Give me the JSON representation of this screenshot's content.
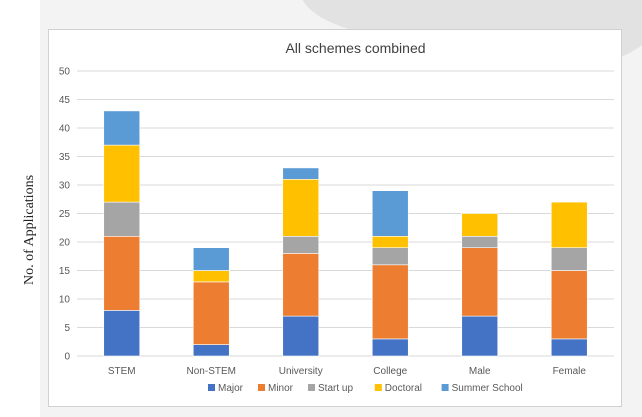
{
  "y_axis_label": "No. of Applications",
  "chart_data": {
    "type": "bar",
    "stacked": true,
    "title": "All schemes combined",
    "xlabel": "",
    "ylabel": "No. of Applications",
    "ylim": [
      0,
      50
    ],
    "yticks": [
      0,
      5,
      10,
      15,
      20,
      25,
      30,
      35,
      40,
      45,
      50
    ],
    "grid": true,
    "legend_position": "bottom",
    "categories": [
      "STEM",
      "Non-STEM",
      "University",
      "College",
      "Male",
      "Female"
    ],
    "series": [
      {
        "name": "Major",
        "color": "#4472c4",
        "values": [
          8,
          2,
          7,
          3,
          7,
          3
        ]
      },
      {
        "name": "Minor",
        "color": "#ed7d31",
        "values": [
          13,
          11,
          11,
          13,
          12,
          12
        ]
      },
      {
        "name": "Start up",
        "color": "#a5a5a5",
        "values": [
          6,
          0,
          3,
          3,
          2,
          4
        ]
      },
      {
        "name": "Doctoral",
        "color": "#ffc000",
        "values": [
          10,
          2,
          10,
          2,
          4,
          8
        ]
      },
      {
        "name": "Summer School",
        "color": "#5b9bd5",
        "values": [
          6,
          4,
          2,
          8,
          0,
          0
        ]
      }
    ]
  }
}
